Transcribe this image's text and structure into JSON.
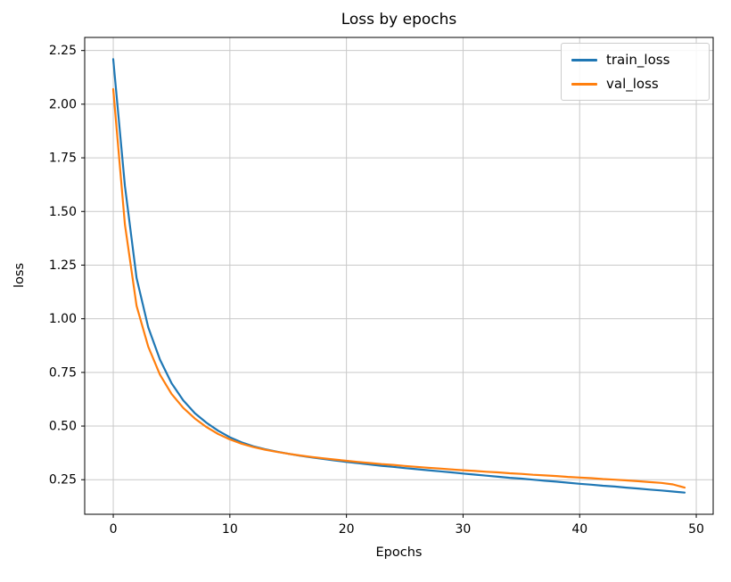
{
  "figure": {
    "title": "Loss by epochs",
    "xlabel": "Epochs",
    "ylabel": "loss"
  },
  "legend": {
    "position": "upper right",
    "entries": [
      {
        "label": "train_loss",
        "color": "#1f77b4"
      },
      {
        "label": "val_loss",
        "color": "#ff7f0e"
      }
    ]
  },
  "chart_data": {
    "type": "line",
    "title": "Loss by epochs",
    "xlabel": "Epochs",
    "ylabel": "loss",
    "grid": true,
    "legend_position": "upper right",
    "xlim": [
      -2.45,
      51.45
    ],
    "ylim": [
      0.089,
      2.311
    ],
    "xticks": [
      0,
      10,
      20,
      30,
      40,
      50
    ],
    "xticklabels": [
      "0",
      "10",
      "20",
      "30",
      "40",
      "50"
    ],
    "yticks": [
      0.25,
      0.5,
      0.75,
      1.0,
      1.25,
      1.5,
      1.75,
      2.0,
      2.25
    ],
    "yticklabels": [
      "0.25",
      "0.50",
      "0.75",
      "1.00",
      "1.25",
      "1.50",
      "1.75",
      "2.00",
      "2.25"
    ],
    "x": [
      0,
      1,
      2,
      3,
      4,
      5,
      6,
      7,
      8,
      9,
      10,
      11,
      12,
      13,
      14,
      15,
      16,
      17,
      18,
      19,
      20,
      21,
      22,
      23,
      24,
      25,
      26,
      27,
      28,
      29,
      30,
      31,
      32,
      33,
      34,
      35,
      36,
      37,
      38,
      39,
      40,
      41,
      42,
      43,
      44,
      45,
      46,
      47,
      48,
      49
    ],
    "series": [
      {
        "name": "train_loss",
        "color": "#1f77b4",
        "values": [
          2.21,
          1.62,
          1.19,
          0.96,
          0.81,
          0.7,
          0.62,
          0.56,
          0.515,
          0.478,
          0.448,
          0.424,
          0.406,
          0.392,
          0.381,
          0.371,
          0.362,
          0.354,
          0.347,
          0.34,
          0.333,
          0.327,
          0.321,
          0.315,
          0.31,
          0.304,
          0.299,
          0.294,
          0.289,
          0.284,
          0.279,
          0.274,
          0.269,
          0.264,
          0.259,
          0.255,
          0.25,
          0.245,
          0.241,
          0.236,
          0.231,
          0.227,
          0.222,
          0.218,
          0.213,
          0.209,
          0.204,
          0.2,
          0.195,
          0.19
        ]
      },
      {
        "name": "val_loss",
        "color": "#ff7f0e",
        "values": [
          2.07,
          1.44,
          1.06,
          0.87,
          0.74,
          0.65,
          0.585,
          0.535,
          0.495,
          0.463,
          0.438,
          0.418,
          0.402,
          0.39,
          0.38,
          0.371,
          0.363,
          0.356,
          0.35,
          0.344,
          0.338,
          0.333,
          0.328,
          0.323,
          0.319,
          0.314,
          0.31,
          0.306,
          0.302,
          0.298,
          0.294,
          0.291,
          0.287,
          0.284,
          0.28,
          0.277,
          0.273,
          0.27,
          0.267,
          0.263,
          0.26,
          0.257,
          0.253,
          0.25,
          0.247,
          0.243,
          0.239,
          0.235,
          0.228,
          0.213
        ]
      }
    ]
  }
}
